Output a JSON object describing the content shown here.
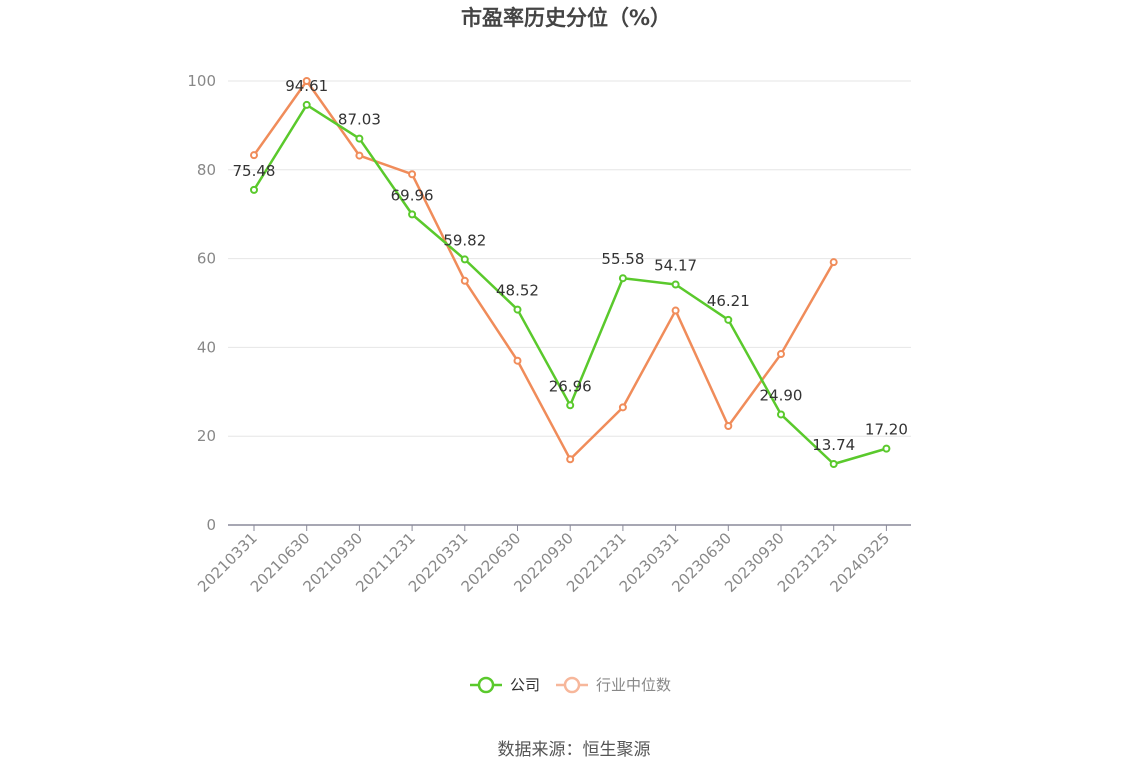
{
  "chart_data": {
    "type": "line",
    "title": "市盈率历史分位（%）",
    "xlabel": "",
    "ylabel": "",
    "ylim": [
      0,
      100
    ],
    "yticks": [
      0,
      20,
      40,
      60,
      80,
      100
    ],
    "grid": true,
    "legend_position": "bottom",
    "categories": [
      "20210331",
      "20210630",
      "20210930",
      "20211231",
      "20220331",
      "20220630",
      "20220930",
      "20221231",
      "20230331",
      "20230630",
      "20230930",
      "20231231",
      "20240325"
    ],
    "series": [
      {
        "name": "公司",
        "color": "#5ac92c",
        "show_labels": true,
        "values": [
          75.48,
          94.61,
          87.03,
          69.96,
          59.82,
          48.52,
          26.96,
          55.58,
          54.17,
          46.21,
          24.9,
          13.74,
          17.2
        ],
        "labels": [
          "75.48",
          "94.61",
          "87.03",
          "69.96",
          "59.82",
          "48.52",
          "26.96",
          "55.58",
          "54.17",
          "46.21",
          "24.90",
          "13.74",
          "17.20"
        ]
      },
      {
        "name": "行业中位数",
        "color": "#f08c5a",
        "show_labels": false,
        "values": [
          83.3,
          100.0,
          83.2,
          79.0,
          55.0,
          37.0,
          14.8,
          26.5,
          48.3,
          22.3,
          38.5,
          59.2,
          null
        ]
      }
    ],
    "source": "数据来源：恒生聚源"
  }
}
